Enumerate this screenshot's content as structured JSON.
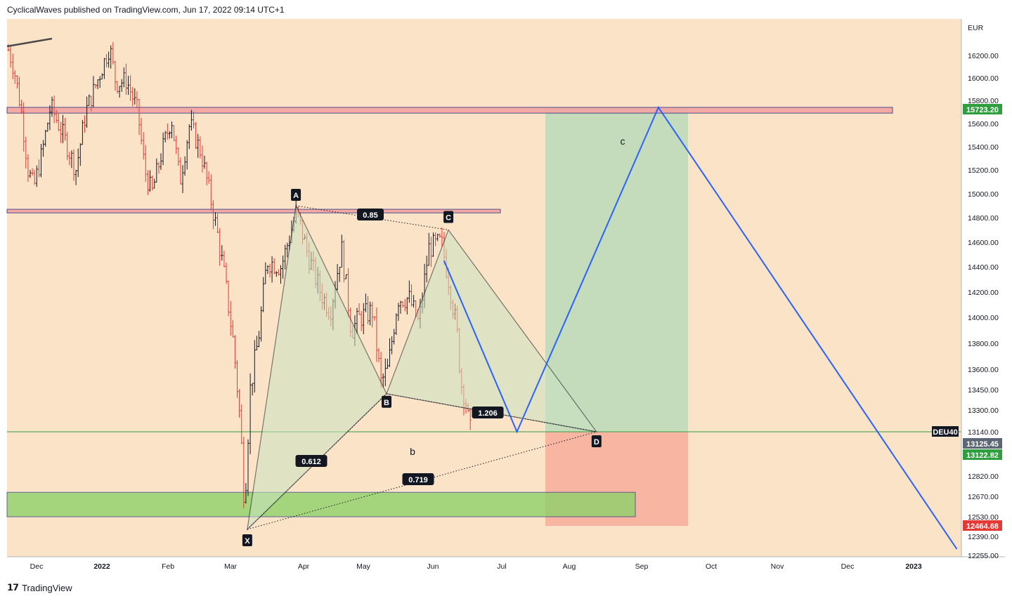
{
  "header": {
    "published": "CyclicalWaves published on TradingView.com, Jun 17, 2022 09:14 UTC+1"
  },
  "footer": {
    "brand": "TradingView"
  },
  "colors": {
    "background": "#fbe3c8",
    "candle_up": "#131722",
    "candle_down": "#e53935",
    "zone_red": "#f4a3a0",
    "zone_green": "#8fd16a",
    "projection": "#2962ff",
    "price_line": "#2e9e3e",
    "profit_zone": "#a8d8b5",
    "loss_zone": "#f7a391"
  },
  "chart_data": {
    "type": "candlestick",
    "currency": "EUR",
    "symbol": "DEU40",
    "x_ticks": [
      "Dec",
      "2022",
      "Feb",
      "Mar",
      "Apr",
      "May",
      "Jun",
      "Jul",
      "Aug",
      "Sep",
      "Oct",
      "Nov",
      "Dec",
      "2023"
    ],
    "y_ticks": [
      16200,
      16000,
      15800,
      15600,
      15400,
      15200,
      15000,
      14800,
      14600,
      14400,
      14200,
      14000,
      13800,
      13600,
      13450,
      13300,
      13140,
      12820,
      12670,
      12530,
      12390,
      12255
    ],
    "ylim": [
      12255,
      16400
    ],
    "price_badges": [
      {
        "value": "15723.20",
        "color": "#2e9e3e"
      },
      {
        "value": "13125.45",
        "color": "#5d6675"
      },
      {
        "value": "13122.82",
        "color": "#2e9e3e"
      },
      {
        "value": "12464.68",
        "color": "#e53935"
      }
    ],
    "symbol_badge": "DEU40",
    "harmonic_points": [
      {
        "label": "X",
        "date": "2022-03-07",
        "price": 12440
      },
      {
        "label": "A",
        "date": "2022-03-29",
        "price": 14900
      },
      {
        "label": "B",
        "date": "2022-05-09",
        "price": 13420
      },
      {
        "label": "C",
        "date": "2022-06-06",
        "price": 14700
      },
      {
        "label": "D",
        "date": "2022-08-12",
        "price": 13140
      }
    ],
    "ratios": [
      {
        "value": "0.85",
        "between": [
          "A",
          "C"
        ]
      },
      {
        "value": "1.206",
        "between": [
          "B",
          "D"
        ]
      },
      {
        "value": "0.612",
        "between": [
          "X",
          "B"
        ]
      },
      {
        "value": "0.719",
        "between": [
          "X",
          "D"
        ]
      }
    ],
    "wave_labels": [
      "b",
      "c"
    ],
    "resistance_zones": [
      {
        "price_low": 15690,
        "price_high": 15740
      },
      {
        "price_low": 14840,
        "price_high": 14870
      }
    ],
    "support_zone": {
      "price_low": 12530,
      "price_high": 12700
    },
    "projection_path": [
      {
        "date": "2022-06-04",
        "price": 14450
      },
      {
        "date": "2022-07-07",
        "price": 13140
      },
      {
        "date": "2022-09-09",
        "price": 15740
      },
      {
        "date": "2023-01-22",
        "price": 12300
      }
    ],
    "position": {
      "entry": 13140,
      "target": 15740,
      "stop": 12464.68
    }
  }
}
